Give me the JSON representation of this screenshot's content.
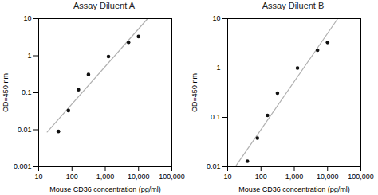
{
  "chart_data": [
    {
      "type": "scatter",
      "title": "Assay Diluent A",
      "xlabel": "Mouse CD36 concentration (pg/ml)",
      "ylabel": "OD=450 nm",
      "log": true,
      "xlim": [
        10,
        100000
      ],
      "ylim": [
        0.001,
        10
      ],
      "xticks": [
        10,
        100,
        {
          "value": 1000,
          "label": "1,000"
        },
        {
          "value": 10000,
          "label": "10,000"
        },
        {
          "value": 100000,
          "label": "100,000"
        }
      ],
      "yticks": [
        0.001,
        0.01,
        0.1,
        1,
        10
      ],
      "grid": false,
      "series": [
        {
          "type": "line",
          "color": "#b0b0b0",
          "x": [
            18,
            18671
          ],
          "values": [
            0.008658,
            10
          ]
        },
        {
          "type": "scatter",
          "color": "#111111",
          "x": [
            39.06,
            78.13,
            156.25,
            312.5,
            1250,
            5000,
            10000
          ],
          "values": [
            0.009,
            0.033,
            0.12,
            0.31,
            0.95,
            2.3,
            3.3
          ]
        }
      ]
    },
    {
      "type": "scatter",
      "title": "Assay Diluent B",
      "xlabel": "Mouse CD36 concentration (pg/ml)",
      "ylabel": "OD=450 nm",
      "log": true,
      "xlim": [
        10,
        100000
      ],
      "ylim": [
        0.01,
        10
      ],
      "xticks": [
        10,
        100,
        {
          "value": 1000,
          "label": "1,000"
        },
        {
          "value": 10000,
          "label": "10,000"
        },
        {
          "value": 100000,
          "label": "100,000"
        }
      ],
      "yticks": [
        0.01,
        0.1,
        1,
        10
      ],
      "grid": false,
      "series": [
        {
          "type": "line",
          "color": "#b0b0b0",
          "x": [
            18,
            20184
          ],
          "values": [
            0.010588,
            10
          ]
        },
        {
          "type": "scatter",
          "color": "#111111",
          "x": [
            39.06,
            78.13,
            156.25,
            312.5,
            1250,
            5000,
            10000
          ],
          "values": [
            0.013,
            0.038,
            0.11,
            0.31,
            1.0,
            2.3,
            3.3
          ]
        }
      ]
    }
  ]
}
